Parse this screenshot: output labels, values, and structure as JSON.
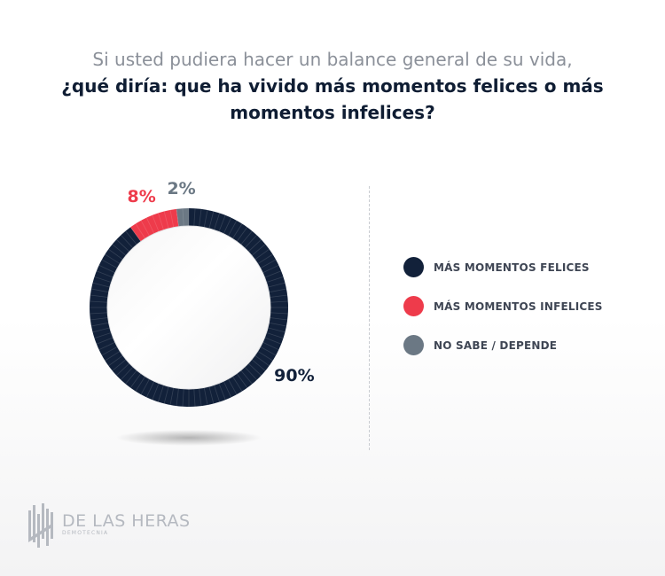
{
  "header": {
    "title_line1": "Si usted pudiera hacer un balance general de su vida,",
    "title_line2": "¿qué diría: que ha vivido más momentos felices o más",
    "title_line3": "momentos infelices?"
  },
  "chart_data": {
    "type": "pie",
    "style": "donut",
    "categories": [
      "MÁS MOMENTOS FELICES",
      "MÁS MOMENTOS INFELICES",
      "NO SABE / DEPENDE"
    ],
    "values": [
      90,
      8,
      2
    ],
    "labels": [
      "90%",
      "8%",
      "2%"
    ],
    "colors": [
      "#12213a",
      "#ee3b4b",
      "#6b7884"
    ],
    "legend_position": "right"
  },
  "brand": {
    "name": "DE LAS HERAS",
    "sub": "DEMOTECNIA"
  }
}
